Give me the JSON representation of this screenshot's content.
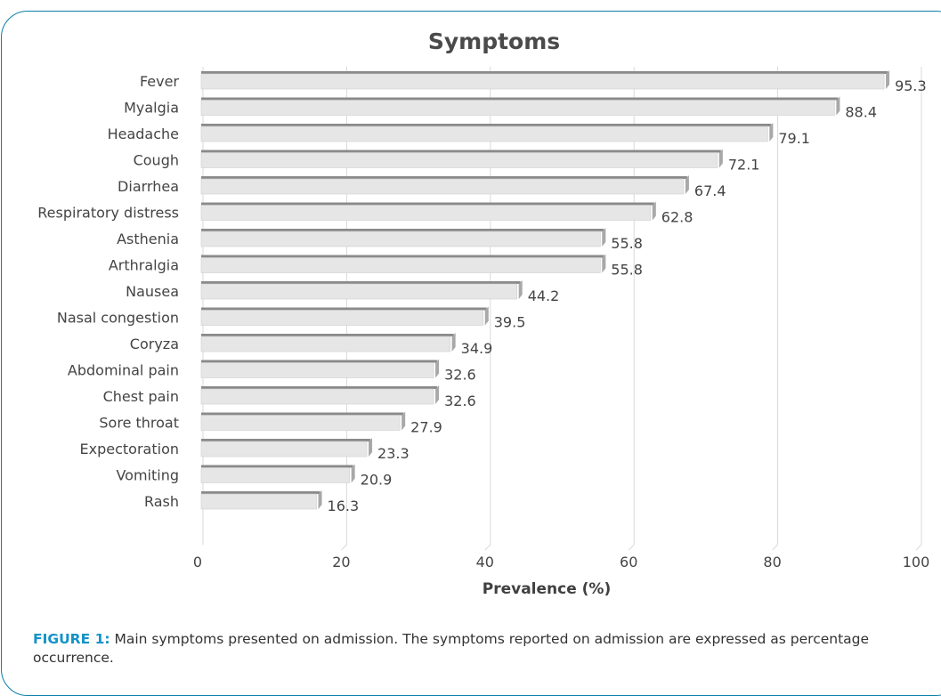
{
  "chart_data": {
    "type": "bar",
    "orientation": "horizontal",
    "title": "Symptoms",
    "xlabel": "Prevalence (%)",
    "ylabel": "",
    "xlim": [
      0,
      100
    ],
    "xticks": [
      "0",
      "20",
      "40",
      "60",
      "80",
      "100"
    ],
    "grid": "vertical",
    "legend": "none",
    "categories": [
      "Fever",
      "Myalgia",
      "Headache",
      "Cough",
      "Diarrhea",
      "Respiratory distress",
      "Asthenia",
      "Arthralgia",
      "Nausea",
      "Nasal congestion",
      "Coryza",
      "Abdominal pain",
      "Chest pain",
      "Sore throat",
      "Expectoration",
      "Vomiting",
      "Rash"
    ],
    "values": [
      95.3,
      88.4,
      79.1,
      72.1,
      67.4,
      62.8,
      55.8,
      55.8,
      44.2,
      39.5,
      34.9,
      32.6,
      32.6,
      27.9,
      23.3,
      20.9,
      16.3
    ],
    "colors": {
      "bar_face": "#e6e6e6",
      "bar_top": "#8a8a8a",
      "bar_end": "#a8a8a8",
      "grid": "#d9d9d9",
      "text": "#444444"
    }
  },
  "caption": {
    "label": "FIGURE 1:",
    "text": " Main symptoms presented on admission. The symptoms reported on admission are expressed as percentage occurrence."
  },
  "colors": {
    "frame": "#0a7fa6",
    "caption_label": "#1493c7"
  }
}
